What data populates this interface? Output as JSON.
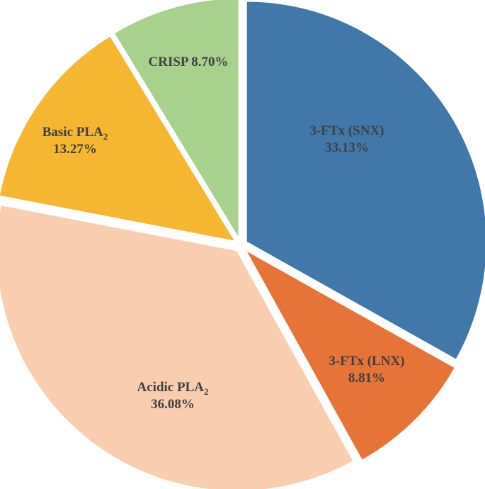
{
  "chart_data": {
    "type": "pie",
    "title": "",
    "slices": [
      {
        "label": "3-FTx (SNX)",
        "value": 33.13,
        "value_label": "33.13%",
        "color": "#4277AA"
      },
      {
        "label": "3-FTx (LNX)",
        "value": 8.81,
        "value_label": "8.81%",
        "color": "#E67338"
      },
      {
        "label": "Acidic PLA",
        "label_sub": "2",
        "value": 36.08,
        "value_label": "36.08%",
        "color": "#F9CDB0"
      },
      {
        "label": "Basic PLA",
        "label_sub": "2",
        "value": 13.27,
        "value_label": "13.27%",
        "color": "#F5B731"
      },
      {
        "label": "CRISP",
        "value": 8.7,
        "value_label": "8.70%",
        "color": "#A9D18E",
        "label_inline": true
      }
    ],
    "start_angle_deg": 0,
    "direction": "clockwise",
    "exploded": true,
    "legend": "none"
  }
}
